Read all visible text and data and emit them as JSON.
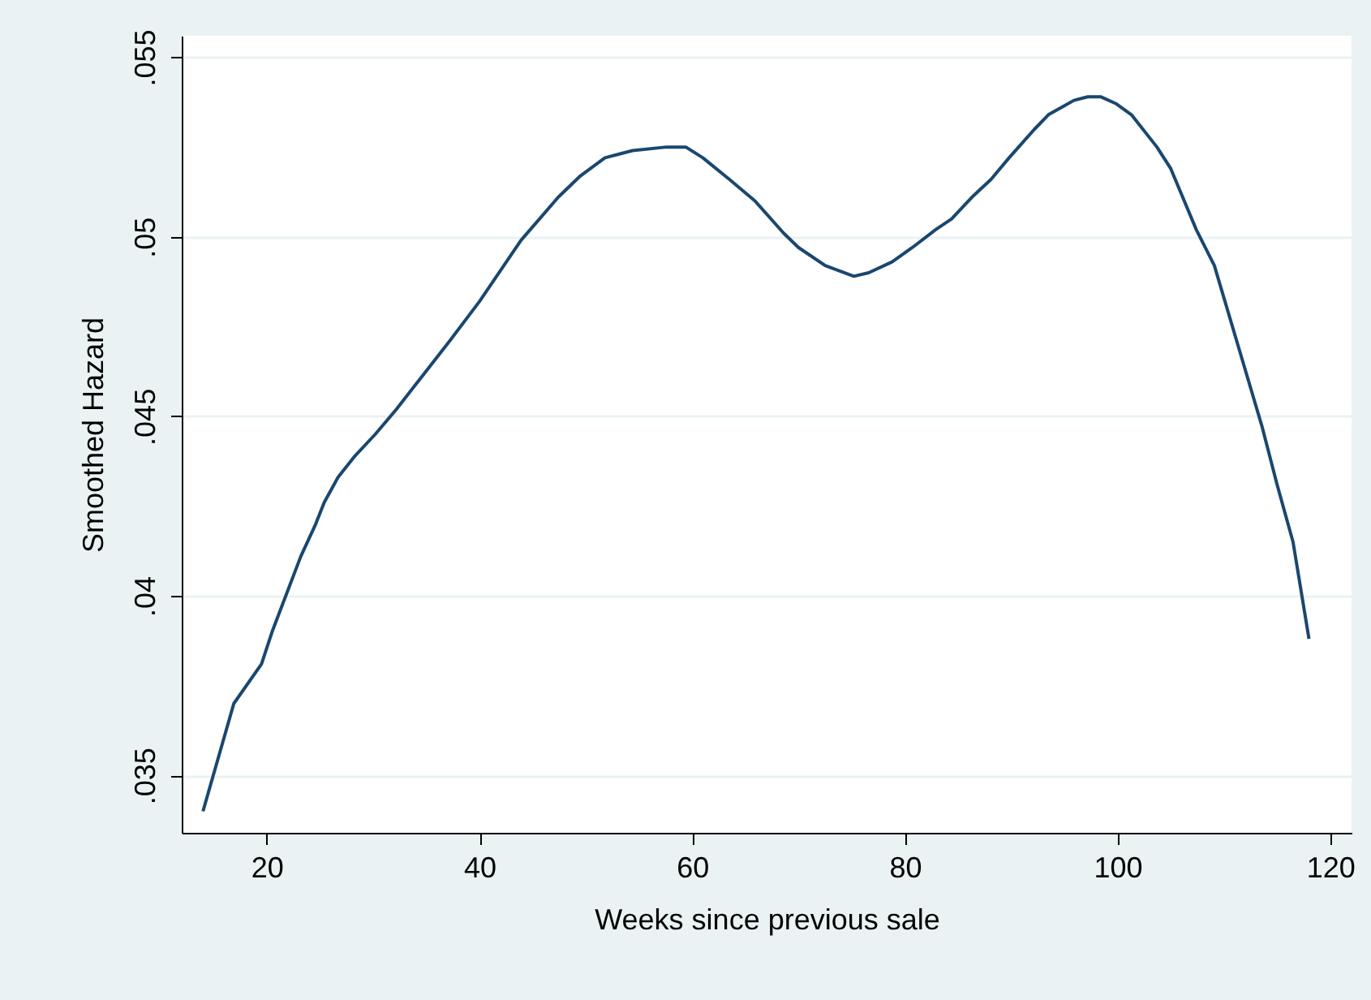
{
  "chart_data": {
    "type": "line",
    "xlabel": "Weeks since previous sale",
    "ylabel": "Smoothed Hazard",
    "x": [
      14.0,
      16.9,
      19.5,
      20.5,
      23.2,
      24.6,
      25.4,
      26.7,
      28.3,
      30.2,
      32.2,
      34.3,
      37.2,
      40.0,
      43.9,
      47.4,
      49.5,
      51.8,
      54.4,
      57.6,
      59.4,
      61.0,
      63.5,
      65.9,
      68.6,
      70.0,
      72.5,
      75.2,
      76.6,
      78.8,
      80.7,
      82.9,
      84.4,
      86.3,
      88.1,
      89.8,
      92.2,
      93.5,
      94.7,
      95.9,
      97.2,
      98.4,
      99.9,
      101.3,
      103.7,
      105.0,
      107.4,
      109.1,
      111.5,
      113.6,
      115.0,
      116.5,
      118.0
    ],
    "series": [
      {
        "color": "#1a476f",
        "values": [
          0.034,
          0.037,
          0.0381,
          0.039,
          0.0411,
          0.042,
          0.0426,
          0.0433,
          0.0439,
          0.0445,
          0.0452,
          0.046,
          0.0471,
          0.0482,
          0.0499,
          0.0511,
          0.0517,
          0.0522,
          0.0524,
          0.0525,
          0.0525,
          0.0522,
          0.0516,
          0.051,
          0.0501,
          0.0497,
          0.0492,
          0.0489,
          0.049,
          0.0493,
          0.0497,
          0.0502,
          0.0505,
          0.0511,
          0.0516,
          0.0522,
          0.053,
          0.0534,
          0.0536,
          0.0538,
          0.0539,
          0.0539,
          0.0537,
          0.0534,
          0.0525,
          0.0519,
          0.0502,
          0.0492,
          0.0468,
          0.0447,
          0.0431,
          0.0415,
          0.0388
        ]
      }
    ],
    "xlim": [
      12,
      122
    ],
    "xticks": [
      20,
      40,
      60,
      80,
      100,
      120
    ],
    "ylim": [
      0.0334,
      0.0556
    ],
    "yticks": [
      {
        "value": 0.035,
        "label": ".035"
      },
      {
        "value": 0.04,
        "label": ".04"
      },
      {
        "value": 0.045,
        "label": ".045"
      },
      {
        "value": 0.05,
        "label": ".05"
      },
      {
        "value": 0.055,
        "label": ".055"
      }
    ],
    "grid": "y"
  }
}
